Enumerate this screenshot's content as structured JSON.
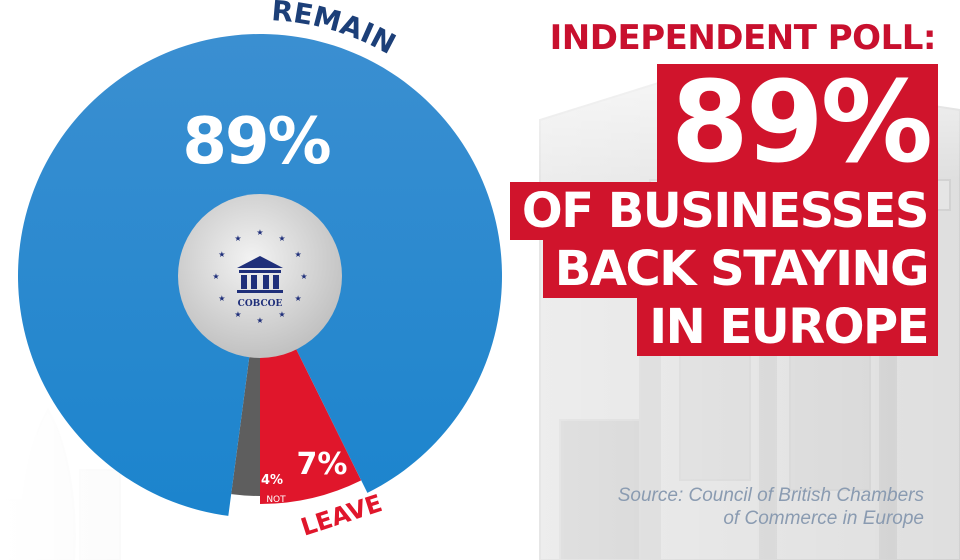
{
  "headline": {
    "kicker": "INDEPENDENT POLL:",
    "percent": "89%",
    "lines": [
      "OF BUSINESSES",
      "BACK STAYING",
      "IN EUROPE"
    ]
  },
  "source": {
    "line1": "Source: Council of British Chambers",
    "line2": "of Commerce in Europe"
  },
  "logo": {
    "text": "COBCOE"
  },
  "colors": {
    "remain": "#1e86cf",
    "leave": "#e0162b",
    "not_sure": "#5e5e5e",
    "accent": "#d0142c"
  },
  "chart_data": {
    "type": "pie",
    "slices": [
      {
        "label": "REMAIN",
        "value": 89,
        "value_label": "89%",
        "color": "#1e86cf"
      },
      {
        "label": "LEAVE",
        "value": 7,
        "value_label": "7%",
        "color": "#e0162b"
      },
      {
        "label": "NOT SURE",
        "value": 4,
        "value_label": "4%",
        "color": "#5e5e5e"
      }
    ]
  }
}
